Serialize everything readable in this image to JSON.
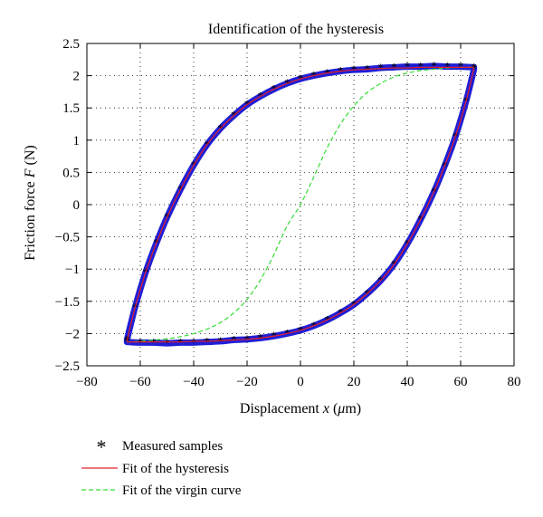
{
  "chart_data": {
    "type": "scatter",
    "title": "Identification of the hysteresis",
    "xlabel": {
      "prefix": "Displacement ",
      "var": "x",
      "unit_open": " (",
      "unit_mu": "μ",
      "unit_rest": "m)"
    },
    "ylabel": {
      "prefix": "Friction force ",
      "var": "F",
      "unit": " (N)"
    },
    "xlim": [
      -80,
      80
    ],
    "ylim": [
      -2.5,
      2.5
    ],
    "xticks": [
      -80,
      -60,
      -40,
      -20,
      0,
      20,
      40,
      60,
      80
    ],
    "xtick_labels": [
      "−80",
      "−60",
      "−40",
      "−20",
      "0",
      "20",
      "40",
      "60",
      "80"
    ],
    "yticks": [
      2.5,
      2,
      1.5,
      1,
      0.5,
      0,
      -0.5,
      -1,
      -1.5,
      -2,
      -2.5
    ],
    "ytick_labels": [
      "2.5",
      "2",
      "1.5",
      "1",
      "0.5",
      "0",
      "−0.5",
      "−1",
      "−1.5",
      "−2",
      "−2.5"
    ],
    "grid": true,
    "legend_placement": "below",
    "series": [
      {
        "name": "Measured samples",
        "kind": "scatter",
        "marker": "*",
        "color": "#1f1fd6",
        "branches": {
          "upper": {
            "x": [
              -65,
              -62,
              -58,
              -54,
              -50,
              -45,
              -40,
              -35,
              -30,
              -25,
              -20,
              -15,
              -10,
              -5,
              0,
              5,
              10,
              15,
              20,
              25,
              30,
              35,
              40,
              45,
              50,
              55,
              60,
              65
            ],
            "y": [
              -2.1,
              -1.6,
              -1.05,
              -0.6,
              -0.2,
              0.23,
              0.61,
              0.93,
              1.18,
              1.38,
              1.55,
              1.68,
              1.79,
              1.88,
              1.95,
              2.0,
              2.04,
              2.07,
              2.09,
              2.1,
              2.12,
              2.13,
              2.14,
              2.14,
              2.15,
              2.14,
              2.14,
              2.13
            ]
          },
          "lower": {
            "x": [
              65,
              62,
              58,
              54,
              50,
              45,
              40,
              35,
              30,
              25,
              20,
              15,
              10,
              5,
              0,
              -5,
              -10,
              -15,
              -20,
              -25,
              -30,
              -35,
              -40,
              -45,
              -50,
              -55,
              -60,
              -65
            ],
            "y": [
              2.1,
              1.6,
              1.05,
              0.6,
              0.2,
              -0.23,
              -0.61,
              -0.93,
              -1.18,
              -1.38,
              -1.55,
              -1.68,
              -1.79,
              -1.88,
              -1.95,
              -2.0,
              -2.04,
              -2.07,
              -2.09,
              -2.1,
              -2.12,
              -2.13,
              -2.14,
              -2.14,
              -2.15,
              -2.14,
              -2.14,
              -2.13
            ]
          }
        }
      },
      {
        "name": "Fit of the hysteresis",
        "kind": "line",
        "color": "#e0202a",
        "style": "solid",
        "branches": {
          "upper": {
            "x": [
              -65,
              -62,
              -58,
              -54,
              -50,
              -45,
              -40,
              -35,
              -30,
              -25,
              -20,
              -15,
              -10,
              -5,
              0,
              5,
              10,
              15,
              20,
              25,
              30,
              35,
              40,
              45,
              50,
              55,
              60,
              65
            ],
            "y": [
              -2.12,
              -1.6,
              -1.05,
              -0.6,
              -0.2,
              0.23,
              0.61,
              0.93,
              1.18,
              1.38,
              1.55,
              1.68,
              1.79,
              1.88,
              1.95,
              2.0,
              2.04,
              2.07,
              2.09,
              2.1,
              2.11,
              2.12,
              2.12,
              2.13,
              2.13,
              2.13,
              2.13,
              2.13
            ]
          },
          "lower": {
            "x": [
              65,
              62,
              58,
              54,
              50,
              45,
              40,
              35,
              30,
              25,
              20,
              15,
              10,
              5,
              0,
              -5,
              -10,
              -15,
              -20,
              -25,
              -30,
              -35,
              -40,
              -45,
              -50,
              -55,
              -60,
              -65
            ],
            "y": [
              2.12,
              1.6,
              1.05,
              0.6,
              0.2,
              -0.23,
              -0.61,
              -0.93,
              -1.18,
              -1.38,
              -1.55,
              -1.68,
              -1.79,
              -1.88,
              -1.95,
              -2.0,
              -2.04,
              -2.07,
              -2.09,
              -2.1,
              -2.11,
              -2.12,
              -2.12,
              -2.13,
              -2.13,
              -2.13,
              -2.13,
              -2.13
            ]
          }
        }
      },
      {
        "name": "Fit of the virgin curve",
        "kind": "line",
        "color": "#33dd33",
        "style": "dashed",
        "x": [
          -65,
          -60,
          -55,
          -50,
          -45,
          -40,
          -35,
          -30,
          -25,
          -20,
          -15,
          -10,
          -5,
          0,
          5,
          10,
          15,
          20,
          25,
          30,
          35,
          40,
          45,
          50,
          55,
          60,
          65
        ],
        "y": [
          -2.13,
          -2.12,
          -2.1,
          -2.08,
          -2.05,
          -2.0,
          -1.93,
          -1.83,
          -1.68,
          -1.47,
          -1.17,
          -0.78,
          -0.33,
          0.0,
          0.43,
          0.88,
          1.25,
          1.53,
          1.74,
          1.88,
          1.98,
          2.04,
          2.08,
          2.1,
          2.12,
          2.13,
          2.13
        ]
      }
    ]
  }
}
